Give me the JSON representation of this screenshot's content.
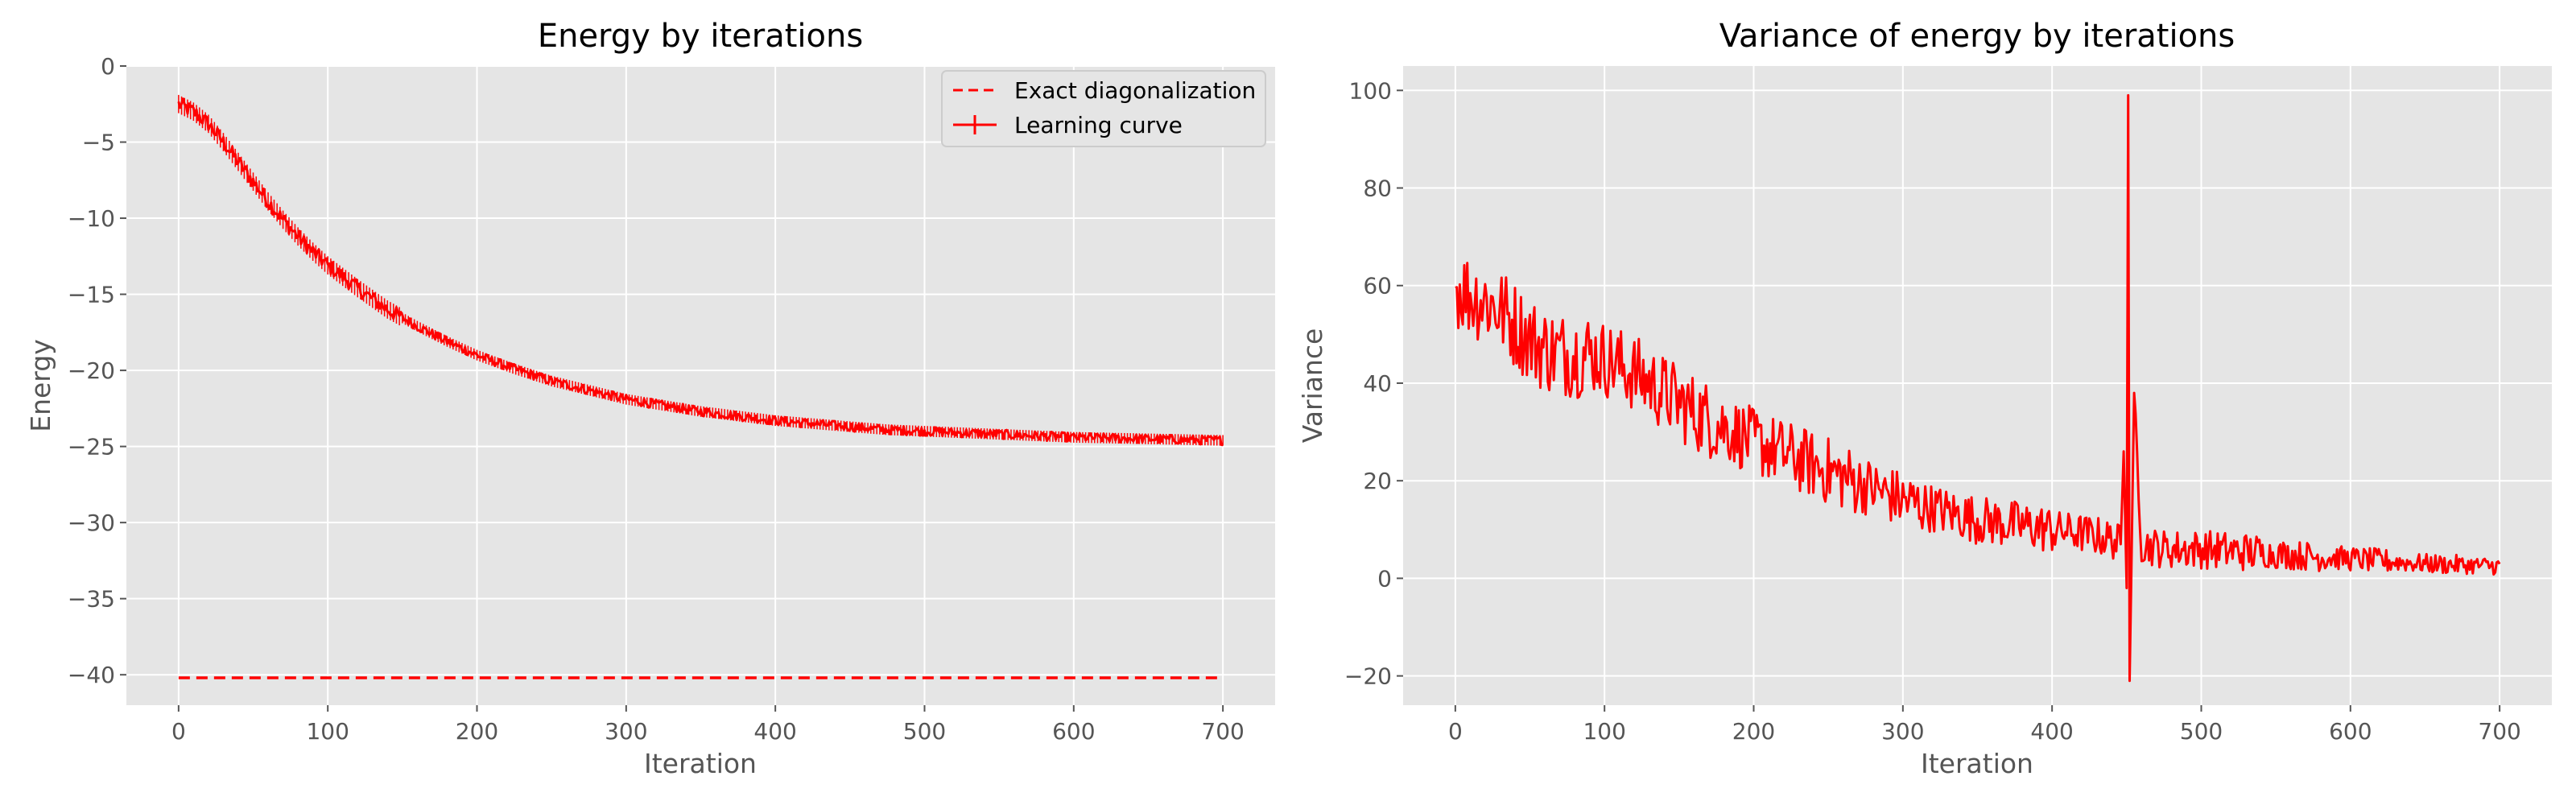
{
  "colors": {
    "plot_background": "#E5E5E5",
    "grid": "#FFFFFF",
    "series": "#FF0000",
    "text": "#555555"
  },
  "chart_data": [
    {
      "type": "line",
      "title": "Energy by iterations",
      "xlabel": "Iteration",
      "ylabel": "Energy",
      "xlim": [
        -35,
        735
      ],
      "ylim": [
        -42,
        0
      ],
      "xticks": [
        0,
        100,
        200,
        300,
        400,
        500,
        600,
        700
      ],
      "yticks": [
        0,
        -5,
        -10,
        -15,
        -20,
        -25,
        -30,
        -35,
        -40
      ],
      "xtick_labels": [
        "0",
        "100",
        "200",
        "300",
        "400",
        "500",
        "600",
        "700"
      ],
      "ytick_labels": [
        "0",
        "−5",
        "−10",
        "−15",
        "−20",
        "−25",
        "−30",
        "−35",
        "−40"
      ],
      "grid": true,
      "legend": {
        "position": "top-right",
        "entries": [
          {
            "label": "Exact diagonalization",
            "style": "dashed"
          },
          {
            "label": "Learning curve",
            "style": "solid-errorbar"
          }
        ]
      },
      "series": [
        {
          "name": "Exact diagonalization",
          "style": "dashed",
          "x": [
            0,
            700
          ],
          "y": [
            -40.2,
            -40.2
          ]
        },
        {
          "name": "Learning curve",
          "style": "solid",
          "x": [
            0,
            10,
            20,
            30,
            40,
            50,
            60,
            70,
            80,
            90,
            100,
            120,
            140,
            160,
            180,
            200,
            225,
            250,
            275,
            300,
            325,
            350,
            375,
            400,
            425,
            450,
            475,
            500,
            550,
            600,
            650,
            700
          ],
          "y": [
            -2.5,
            -3.0,
            -3.8,
            -5.0,
            -6.3,
            -7.6,
            -8.9,
            -10.1,
            -11.2,
            -12.2,
            -13.1,
            -14.6,
            -16.0,
            -17.1,
            -18.1,
            -19.0,
            -19.9,
            -20.7,
            -21.3,
            -21.9,
            -22.3,
            -22.7,
            -23.0,
            -23.3,
            -23.5,
            -23.7,
            -23.9,
            -24.0,
            -24.2,
            -24.4,
            -24.5,
            -24.6
          ]
        }
      ]
    },
    {
      "type": "line",
      "title": "Variance of energy by iterations",
      "xlabel": "Iteration",
      "ylabel": "Variance",
      "xlim": [
        -35,
        735
      ],
      "ylim": [
        -26,
        105
      ],
      "xticks": [
        0,
        100,
        200,
        300,
        400,
        500,
        600,
        700
      ],
      "yticks": [
        100,
        80,
        60,
        40,
        20,
        0,
        -20
      ],
      "xtick_labels": [
        "0",
        "100",
        "200",
        "300",
        "400",
        "500",
        "600",
        "700"
      ],
      "ytick_labels": [
        "100",
        "80",
        "60",
        "40",
        "20",
        "0",
        "−20"
      ],
      "grid": true,
      "series": [
        {
          "style": "solid",
          "x": [
            0,
            10,
            20,
            30,
            40,
            50,
            60,
            70,
            80,
            90,
            100,
            120,
            140,
            160,
            180,
            200,
            225,
            250,
            275,
            300,
            325,
            350,
            375,
            400,
            425,
            440,
            446,
            448,
            450,
            451,
            452,
            455,
            460,
            475,
            500,
            550,
            600,
            650,
            700
          ],
          "y": [
            60,
            58,
            57,
            55,
            52,
            49,
            47,
            46,
            46,
            46,
            45,
            42,
            38,
            34,
            31,
            28,
            25,
            22,
            19,
            16,
            14,
            12,
            11,
            10,
            9,
            8,
            7,
            26,
            -2,
            99,
            -21,
            38,
            7,
            6,
            6,
            5,
            4,
            3,
            2.5
          ]
        }
      ],
      "noise_amplitude": [
        9,
        9,
        8,
        8,
        7,
        7,
        6,
        5,
        5,
        4,
        4,
        4,
        3,
        2.5,
        2,
        1.8,
        1.5
      ]
    }
  ]
}
